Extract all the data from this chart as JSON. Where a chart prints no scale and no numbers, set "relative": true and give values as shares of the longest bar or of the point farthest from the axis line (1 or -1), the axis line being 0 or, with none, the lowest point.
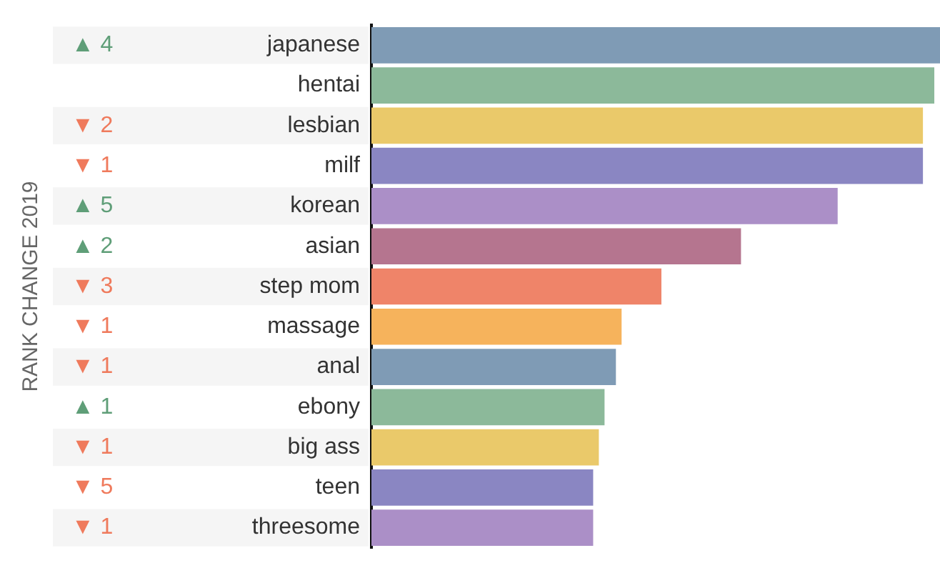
{
  "chart_data": {
    "type": "bar",
    "orientation": "horizontal",
    "relative": true,
    "categories": [
      "japanese",
      "hentai",
      "lesbian",
      "milf",
      "korean",
      "asian",
      "step mom",
      "massage",
      "anal",
      "ebony",
      "big ass",
      "teen",
      "threesome"
    ],
    "values": [
      1,
      0.99,
      0.97,
      0.97,
      0.82,
      0.65,
      0.51,
      0.44,
      0.43,
      0.41,
      0.4,
      0.39,
      0.39
    ],
    "colors": [
      "#7f9bb5",
      "#8cb99a",
      "#eac96a",
      "#8a86c2",
      "#ab8fc7",
      "#b5758f",
      "#ef8469",
      "#f6b35c",
      "#7f9bb5",
      "#8cb99a",
      "#eac96a",
      "#8a86c2",
      "#ab8fc7"
    ],
    "annotations": [
      "RANK CHANGE 2019",
      "▲ 4",
      null,
      "▼ 2",
      "▼ 1",
      "▲ 5",
      "▲ 2",
      "▼ 3",
      "▼ 1",
      "▼ 1",
      "▲ 1",
      "▼ 1",
      "▼ 5",
      "▼ 1"
    ],
    "legend": false
  }
}
